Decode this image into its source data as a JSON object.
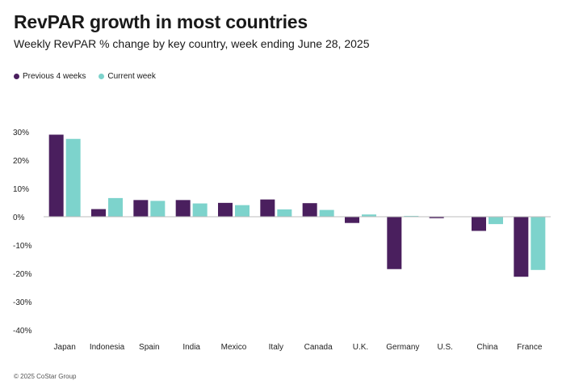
{
  "title": "RevPAR growth in most countries",
  "subtitle": "Weekly RevPAR % change by key country, week ending June 28, 2025",
  "footer": "© 2025 CoStar Group",
  "legend": [
    {
      "label": "Previous 4 weeks",
      "color": "#4a1f5e"
    },
    {
      "label": "Current week",
      "color": "#7dd3cc"
    }
  ],
  "chart_data": {
    "type": "bar",
    "categories": [
      "Japan",
      "Indonesia",
      "Spain",
      "India",
      "Mexico",
      "Italy",
      "Canada",
      "U.K.",
      "Germany",
      "U.S.",
      "China",
      "France"
    ],
    "series": [
      {
        "name": "Previous 4 weeks",
        "color": "#4a1f5e",
        "values": [
          29.0,
          2.7,
          5.9,
          5.9,
          4.9,
          6.1,
          4.8,
          -2.2,
          -18.5,
          -0.5,
          -5.0,
          -21.2
        ]
      },
      {
        "name": "Current week",
        "color": "#7dd3cc",
        "values": [
          27.5,
          6.6,
          5.6,
          4.7,
          4.1,
          2.6,
          2.4,
          0.8,
          0.3,
          0.1,
          -2.6,
          -18.8
        ]
      }
    ],
    "ylim": [
      -40,
      30
    ],
    "yticks": [
      30,
      20,
      10,
      0,
      -10,
      -20,
      -30,
      -40
    ],
    "ytick_labels": [
      "30%",
      "20%",
      "10%",
      "0%",
      "-10%",
      "-20%",
      "-30%",
      "-40%"
    ],
    "grid": false,
    "zero_line": true,
    "legend_position": "top-left"
  }
}
